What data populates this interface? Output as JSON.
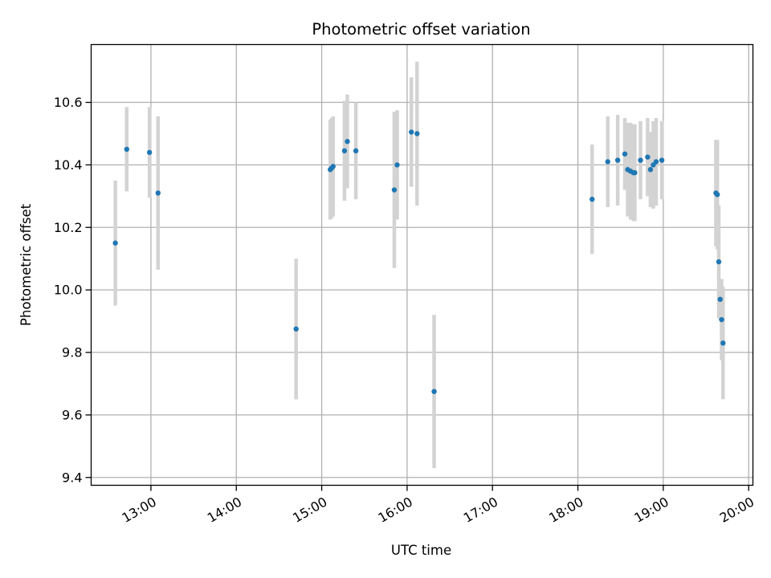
{
  "chart_data": {
    "type": "scatter",
    "title": "Photometric offset variation",
    "xlabel": "UTC time",
    "ylabel": "Photometric offset",
    "x_unit": "UTC time of day (HH:MM)",
    "xlim": [
      "12:18",
      "20:03"
    ],
    "ylim": [
      9.375,
      10.785
    ],
    "x_ticks": [
      "13:00",
      "14:00",
      "15:00",
      "16:00",
      "17:00",
      "18:00",
      "19:00",
      "20:00"
    ],
    "y_ticks": [
      9.4,
      9.6,
      9.8,
      10.0,
      10.2,
      10.4,
      10.6
    ],
    "y_tick_labels": [
      "9.4",
      "9.6",
      "9.8",
      "10.0",
      "10.2",
      "10.4",
      "10.6"
    ],
    "grid": true,
    "x_tick_rotation_deg": 30,
    "colors": {
      "point": "#1f77b4",
      "error_bar": "#d3d3d3",
      "grid": "#b0b0b0"
    },
    "series": [
      {
        "points": [
          {
            "x": "12:35",
            "y": 10.15,
            "yerr": 0.2
          },
          {
            "x": "12:43",
            "y": 10.45,
            "yerr": 0.135
          },
          {
            "x": "12:59",
            "y": 10.44,
            "yerr": 0.145
          },
          {
            "x": "13:05",
            "y": 10.31,
            "yerr": 0.245
          },
          {
            "x": "14:42",
            "y": 9.875,
            "yerr": 0.225
          },
          {
            "x": "15:06",
            "y": 10.385,
            "yerr": 0.16
          },
          {
            "x": "15:07",
            "y": 10.39,
            "yerr": 0.16
          },
          {
            "x": "15:08",
            "y": 10.395,
            "yerr": 0.16
          },
          {
            "x": "15:16",
            "y": 10.445,
            "yerr": 0.16
          },
          {
            "x": "15:18",
            "y": 10.475,
            "yerr": 0.15
          },
          {
            "x": "15:24",
            "y": 10.445,
            "yerr": 0.155
          },
          {
            "x": "15:51",
            "y": 10.32,
            "yerr": 0.25
          },
          {
            "x": "15:53",
            "y": 10.4,
            "yerr": 0.175
          },
          {
            "x": "16:03",
            "y": 10.505,
            "yerr": 0.175
          },
          {
            "x": "16:07",
            "y": 10.5,
            "yerr": 0.23
          },
          {
            "x": "16:19",
            "y": 9.675,
            "yerr": 0.245
          },
          {
            "x": "18:10",
            "y": 10.29,
            "yerr": 0.175
          },
          {
            "x": "18:21",
            "y": 10.41,
            "yerr": 0.145
          },
          {
            "x": "18:28",
            "y": 10.415,
            "yerr": 0.145
          },
          {
            "x": "18:33",
            "y": 10.435,
            "yerr": 0.115
          },
          {
            "x": "18:35",
            "y": 10.385,
            "yerr": 0.15
          },
          {
            "x": "18:37",
            "y": 10.38,
            "yerr": 0.155
          },
          {
            "x": "18:39",
            "y": 10.375,
            "yerr": 0.155
          },
          {
            "x": "18:40",
            "y": 10.375,
            "yerr": 0.155
          },
          {
            "x": "18:44",
            "y": 10.415,
            "yerr": 0.125
          },
          {
            "x": "18:49",
            "y": 10.425,
            "yerr": 0.125
          },
          {
            "x": "18:51",
            "y": 10.385,
            "yerr": 0.12
          },
          {
            "x": "18:53",
            "y": 10.4,
            "yerr": 0.14
          },
          {
            "x": "18:55",
            "y": 10.41,
            "yerr": 0.14
          },
          {
            "x": "18:59",
            "y": 10.415,
            "yerr": 0.125
          },
          {
            "x": "19:37",
            "y": 10.31,
            "yerr": 0.17
          },
          {
            "x": "19:38",
            "y": 10.305,
            "yerr": 0.175
          },
          {
            "x": "19:39",
            "y": 10.09,
            "yerr": 0.18
          },
          {
            "x": "19:40",
            "y": 9.97,
            "yerr": 0.065
          },
          {
            "x": "19:41",
            "y": 9.905,
            "yerr": 0.13
          },
          {
            "x": "19:42",
            "y": 9.83,
            "yerr": 0.18
          }
        ]
      }
    ]
  }
}
